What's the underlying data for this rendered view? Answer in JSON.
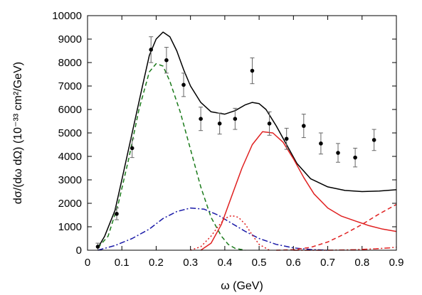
{
  "chart_data": {
    "type": "line",
    "title": "",
    "xlabel": "ω (GeV)",
    "ylabel": "dσ/(dω dΩ) (10⁻³³ cm²/GeV)",
    "xlim": [
      0,
      0.9
    ],
    "ylim": [
      0,
      10000
    ],
    "xticks": [
      0,
      0.1,
      0.2,
      0.3,
      0.4,
      0.5,
      0.6,
      0.7,
      0.8,
      0.9
    ],
    "xtick_labels": [
      "0",
      "0.1",
      "0.2",
      "0.3",
      "0.4",
      "0.5",
      "0.6",
      "0.7",
      "0.8",
      "0.9"
    ],
    "yticks": [
      0,
      1000,
      2000,
      3000,
      4000,
      5000,
      6000,
      7000,
      8000,
      9000,
      10000
    ],
    "ytick_labels": [
      "0",
      "1000",
      "2000",
      "3000",
      "4000",
      "5000",
      "6000",
      "7000",
      "8000",
      "9000",
      "10000"
    ],
    "grid": false,
    "legend": "none",
    "series": [
      {
        "style": "solid",
        "color": "#000000",
        "x": [
          0.03,
          0.05,
          0.08,
          0.1,
          0.13,
          0.16,
          0.18,
          0.2,
          0.22,
          0.24,
          0.26,
          0.28,
          0.3,
          0.33,
          0.36,
          0.4,
          0.43,
          0.46,
          0.48,
          0.5,
          0.52,
          0.55,
          0.58,
          0.61,
          0.65,
          0.7,
          0.75,
          0.8,
          0.85,
          0.9
        ],
        "y": [
          100,
          600,
          1700,
          3000,
          5000,
          7000,
          8300,
          9000,
          9300,
          9100,
          8500,
          7700,
          7000,
          6300,
          5900,
          5800,
          5950,
          6200,
          6300,
          6250,
          6000,
          5300,
          4500,
          3700,
          3050,
          2700,
          2550,
          2500,
          2520,
          2580
        ]
      },
      {
        "style": "dashed",
        "color": "#1a7a1a",
        "x": [
          0.03,
          0.06,
          0.09,
          0.12,
          0.15,
          0.18,
          0.2,
          0.22,
          0.24,
          0.27,
          0.3,
          0.33,
          0.36,
          0.39,
          0.41,
          0.43,
          0.46
        ],
        "y": [
          100,
          600,
          2000,
          3900,
          6000,
          7600,
          7950,
          7850,
          7200,
          5900,
          4300,
          2700,
          1400,
          600,
          250,
          80,
          0
        ]
      },
      {
        "style": "dashdot",
        "color": "#1a1aa8",
        "x": [
          0.03,
          0.08,
          0.13,
          0.18,
          0.22,
          0.26,
          0.3,
          0.34,
          0.38,
          0.42,
          0.46,
          0.5,
          0.55,
          0.6,
          0.65,
          0.7
        ],
        "y": [
          0,
          200,
          500,
          900,
          1350,
          1650,
          1800,
          1750,
          1500,
          1150,
          800,
          500,
          250,
          100,
          30,
          0
        ]
      },
      {
        "style": "solid",
        "color": "#e02020",
        "x": [
          0.33,
          0.36,
          0.39,
          0.42,
          0.45,
          0.48,
          0.51,
          0.54,
          0.57,
          0.6,
          0.63,
          0.66,
          0.7,
          0.74,
          0.78,
          0.82,
          0.86,
          0.9
        ],
        "y": [
          0,
          300,
          1100,
          2300,
          3500,
          4500,
          5050,
          5000,
          4600,
          3900,
          3100,
          2400,
          1800,
          1450,
          1250,
          1050,
          900,
          800
        ]
      },
      {
        "style": "dotted",
        "color": "#e02020",
        "x": [
          0.3,
          0.33,
          0.36,
          0.38,
          0.4,
          0.42,
          0.44,
          0.46,
          0.48,
          0.5,
          0.53
        ],
        "y": [
          0,
          150,
          600,
          1000,
          1350,
          1480,
          1400,
          1100,
          650,
          250,
          0
        ]
      },
      {
        "style": "dashed",
        "color": "#e02020",
        "x": [
          0.55,
          0.6,
          0.65,
          0.7,
          0.75,
          0.8,
          0.85,
          0.9
        ],
        "y": [
          0,
          20,
          120,
          350,
          700,
          1100,
          1550,
          1950
        ]
      },
      {
        "style": "dashdot",
        "color": "#e02020",
        "x": [
          0.6,
          0.7,
          0.78,
          0.84,
          0.88,
          0.9
        ],
        "y": [
          0,
          0,
          20,
          60,
          100,
          130
        ]
      }
    ],
    "points": {
      "x": [
        0.03,
        0.085,
        0.13,
        0.185,
        0.23,
        0.28,
        0.33,
        0.385,
        0.43,
        0.48,
        0.53,
        0.58,
        0.63,
        0.68,
        0.73,
        0.78,
        0.835
      ],
      "y": [
        150,
        1550,
        4350,
        8550,
        8100,
        7050,
        5600,
        5400,
        5600,
        7650,
        5400,
        4750,
        5300,
        4550,
        4150,
        3950,
        4700
      ],
      "err": [
        150,
        250,
        400,
        550,
        550,
        500,
        500,
        450,
        450,
        550,
        500,
        450,
        500,
        450,
        400,
        400,
        450
      ]
    }
  }
}
